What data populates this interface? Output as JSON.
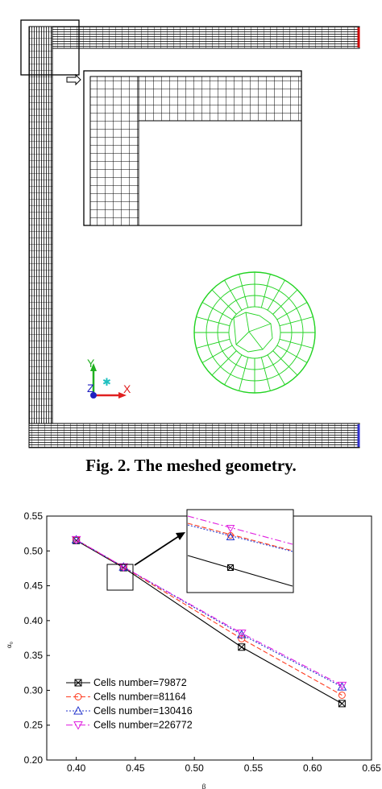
{
  "figure2": {
    "caption": "Fig. 2. The meshed geometry.",
    "axes_triad": {
      "y_label": "Y",
      "z_label": "Z",
      "x_label": "X"
    }
  },
  "chart_data": {
    "type": "line",
    "xlabel": "β",
    "ylabel": "α₀",
    "xlim": [
      0.375,
      0.65
    ],
    "ylim": [
      0.2,
      0.55
    ],
    "xticks": [
      "0.40",
      "0.45",
      "0.50",
      "0.55",
      "0.60",
      "0.65"
    ],
    "yticks": [
      "0.20",
      "0.25",
      "0.30",
      "0.35",
      "0.40",
      "0.45",
      "0.50",
      "0.55"
    ],
    "x": [
      0.4,
      0.44,
      0.54,
      0.625
    ],
    "series": [
      {
        "name": "Cells number=79872",
        "color": "#000000",
        "marker": "square-x",
        "dash": "",
        "values": [
          0.515,
          0.476,
          0.362,
          0.281
        ]
      },
      {
        "name": "Cells number=81164",
        "color": "#ff3b1f",
        "marker": "circle",
        "dash": "6,3",
        "values": [
          0.516,
          0.477,
          0.374,
          0.293
        ]
      },
      {
        "name": "Cells number=130416",
        "color": "#2233cc",
        "marker": "triangle-up",
        "dash": "2,2",
        "values": [
          0.516,
          0.477,
          0.38,
          0.305
        ]
      },
      {
        "name": "Cells number=226772",
        "color": "#e020e0",
        "marker": "triangle-down",
        "dash": "8,3,2,3",
        "values": [
          0.516,
          0.477,
          0.382,
          0.307
        ]
      }
    ],
    "legend": "lower-left",
    "inset_zoom": {
      "target_x": 0.44,
      "target_y": 0.477
    }
  }
}
